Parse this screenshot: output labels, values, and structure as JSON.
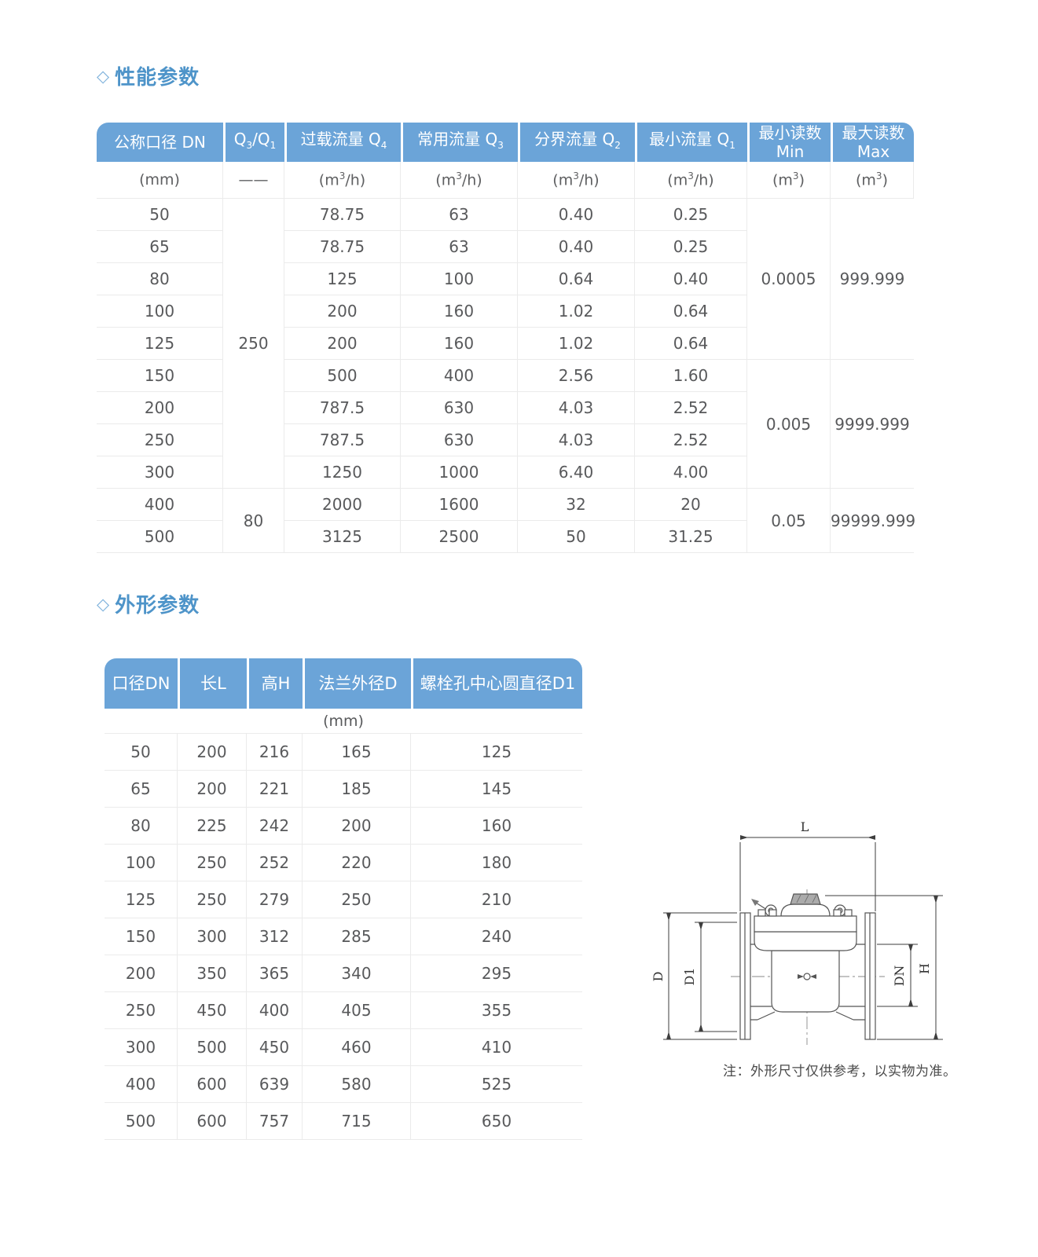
{
  "colors": {
    "header_blue": "#6BA4D8",
    "title_blue": "#4E94C9",
    "diamond_blue": "#7FB2DC",
    "cell_text": "#58595B",
    "grid_line": "#EBEBEB"
  },
  "sections": {
    "performance": {
      "diamond": "◇",
      "title": "性能参数"
    },
    "dimensions": {
      "diamond": "◇",
      "title": "外形参数"
    }
  },
  "perf_table": {
    "headers": [
      "公称口径 DN",
      "Q~3~/Q~1~",
      "过载流量 Q~4~",
      "常用流量 Q~3~",
      "分界流量 Q~2~",
      "最小流量 Q~1~",
      "最小读数\nMin",
      "最大读数\nMax"
    ],
    "units": [
      "(mm)",
      "——",
      "(m^3^/h)",
      "(m^3^/h)",
      "(m^3^/h)",
      "(m^3^/h)",
      "(m^3^)",
      "(m^3^)"
    ],
    "rows": [
      [
        "50",
        "78.75",
        "63",
        "0.40",
        "0.25"
      ],
      [
        "65",
        "78.75",
        "63",
        "0.40",
        "0.25"
      ],
      [
        "80",
        "125",
        "100",
        "0.64",
        "0.40"
      ],
      [
        "100",
        "200",
        "160",
        "1.02",
        "0.64"
      ],
      [
        "125",
        "200",
        "160",
        "1.02",
        "0.64"
      ],
      [
        "150",
        "500",
        "400",
        "2.56",
        "1.60"
      ],
      [
        "200",
        "787.5",
        "630",
        "4.03",
        "2.52"
      ],
      [
        "250",
        "787.5",
        "630",
        "4.03",
        "2.52"
      ],
      [
        "300",
        "1250",
        "1000",
        "6.40",
        "4.00"
      ],
      [
        "400",
        "2000",
        "1600",
        "32",
        "20"
      ],
      [
        "500",
        "3125",
        "2500",
        "50",
        "31.25"
      ]
    ],
    "merged": {
      "q3q1": [
        {
          "value": "250",
          "start": 0,
          "span": 9
        },
        {
          "value": "80",
          "start": 9,
          "span": 2
        }
      ],
      "min": [
        {
          "value": "0.0005",
          "start": 0,
          "span": 5
        },
        {
          "value": "0.005",
          "start": 5,
          "span": 4
        },
        {
          "value": "0.05",
          "start": 9,
          "span": 2
        }
      ],
      "max": [
        {
          "value": "999.999",
          "start": 0,
          "span": 5
        },
        {
          "value": "9999.999",
          "start": 5,
          "span": 4
        },
        {
          "value": "99999.999",
          "start": 9,
          "span": 2
        }
      ]
    }
  },
  "dim_table": {
    "headers": [
      "口径DN",
      "长L",
      "高H",
      "法兰外径D",
      "螺栓孔中心圆直径D1"
    ],
    "unit": "(mm)",
    "rows": [
      [
        "50",
        "200",
        "216",
        "165",
        "125"
      ],
      [
        "65",
        "200",
        "221",
        "185",
        "145"
      ],
      [
        "80",
        "225",
        "242",
        "200",
        "160"
      ],
      [
        "100",
        "250",
        "252",
        "220",
        "180"
      ],
      [
        "125",
        "250",
        "279",
        "250",
        "210"
      ],
      [
        "150",
        "300",
        "312",
        "285",
        "240"
      ],
      [
        "200",
        "350",
        "365",
        "340",
        "295"
      ],
      [
        "250",
        "450",
        "400",
        "405",
        "355"
      ],
      [
        "300",
        "500",
        "450",
        "460",
        "410"
      ],
      [
        "400",
        "600",
        "639",
        "580",
        "525"
      ],
      [
        "500",
        "600",
        "757",
        "715",
        "650"
      ]
    ]
  },
  "drawing": {
    "labels": {
      "length": "L",
      "flange_od": "D",
      "bolt_circle": "D1",
      "nominal": "DN",
      "height": "H"
    },
    "note": "注：外形尺寸仅供参考，以实物为准。"
  }
}
